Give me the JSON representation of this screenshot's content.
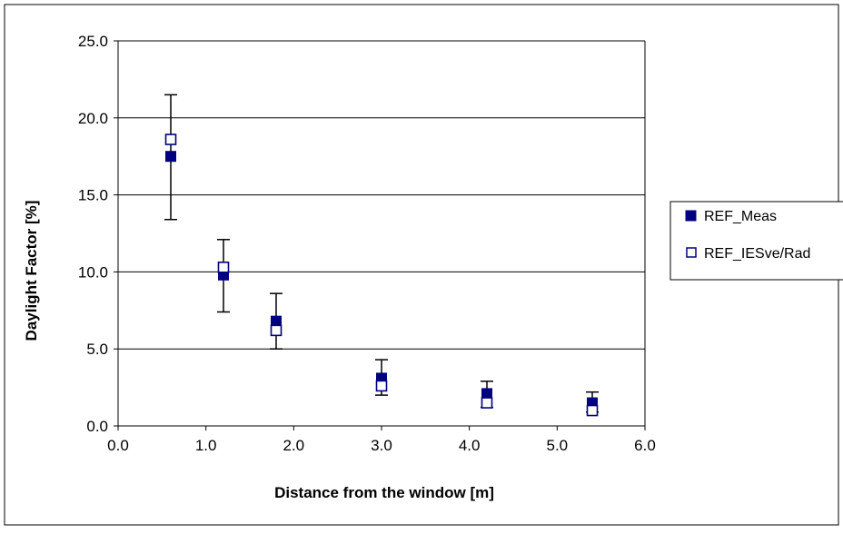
{
  "chart_data": {
    "type": "scatter",
    "title": "",
    "xlabel": "Distance from the window [m]",
    "ylabel": "Daylight Factor [%]",
    "xlim": [
      0,
      6
    ],
    "ylim": [
      0,
      25
    ],
    "xticks": [
      "0.0",
      "1.0",
      "2.0",
      "3.0",
      "4.0",
      "5.0",
      "6.0"
    ],
    "yticks": [
      "0.0",
      "5.0",
      "10.0",
      "15.0",
      "20.0",
      "25.0"
    ],
    "grid": "horizontal",
    "legend_position": "right",
    "series": [
      {
        "name": "REF_Meas",
        "marker": "filled-square",
        "color": "#000080",
        "x": [
          0.6,
          1.2,
          1.8,
          3.0,
          4.2,
          5.4
        ],
        "y": [
          17.5,
          9.8,
          6.8,
          3.1,
          2.1,
          1.5
        ],
        "error_low": [
          13.4,
          7.4,
          5.0,
          2.0,
          1.2,
          0.9
        ],
        "error_high": [
          21.5,
          12.1,
          8.6,
          4.3,
          2.9,
          2.2
        ]
      },
      {
        "name": "REF_IESve/Rad",
        "marker": "open-square",
        "color": "#000080",
        "x": [
          0.6,
          1.2,
          1.8,
          3.0,
          4.2,
          5.4
        ],
        "y": [
          18.6,
          10.3,
          6.2,
          2.6,
          1.5,
          1.0
        ]
      }
    ]
  }
}
